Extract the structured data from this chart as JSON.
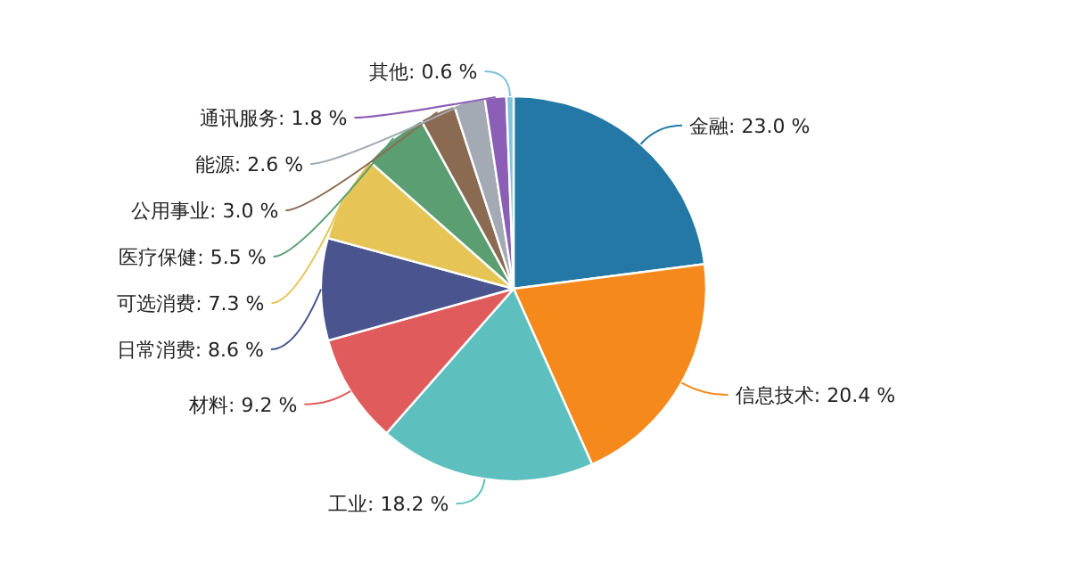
{
  "chart_data": {
    "type": "pie",
    "categories": [
      "金融",
      "信息技术",
      "工业",
      "材料",
      "日常消费",
      "可选消费",
      "医疗保健",
      "公用事业",
      "能源",
      "通讯服务",
      "其他"
    ],
    "values": [
      23.0,
      20.4,
      18.2,
      9.2,
      8.6,
      7.3,
      5.5,
      3.0,
      2.6,
      1.8,
      0.6
    ],
    "value_labels": [
      "23.0 %",
      "20.4 %",
      "18.2 %",
      "9.2 %",
      "8.6 %",
      "7.3 %",
      "5.5 %",
      "3.0 %",
      "2.6 %",
      "1.8 %",
      "0.6 %"
    ],
    "colors": [
      "#2378a6",
      "#f5891c",
      "#5ebfbf",
      "#e05c5c",
      "#4a5590",
      "#e6c556",
      "#5a9e72",
      "#8b6a52",
      "#a3aab3",
      "#8a5fb5",
      "#7fc3dc"
    ]
  }
}
